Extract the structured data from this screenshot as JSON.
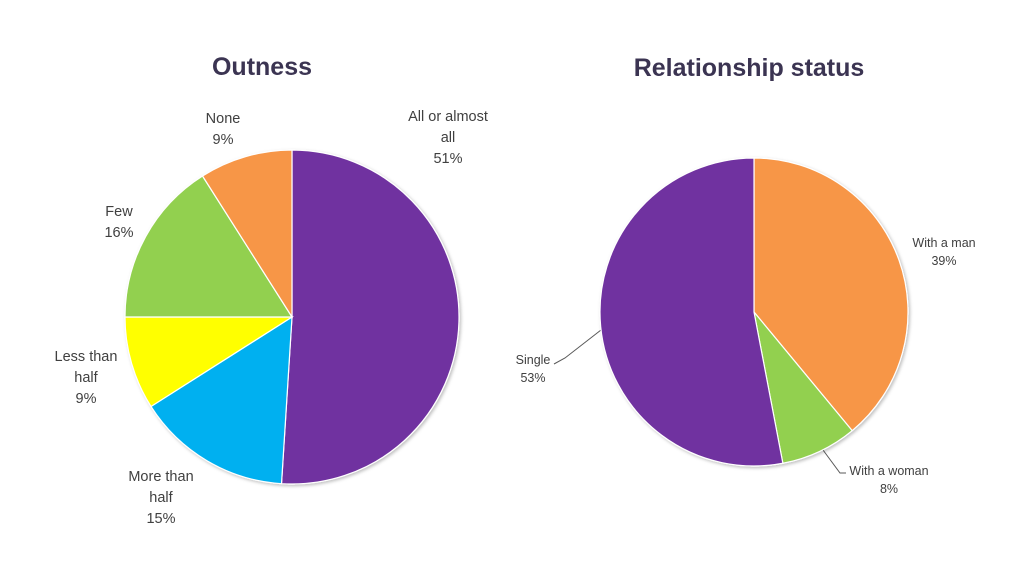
{
  "chart_data": [
    {
      "type": "pie",
      "title": "Outness",
      "start_angle_deg": 0,
      "direction": "clockwise",
      "slices": [
        {
          "label_lines": [
            "All or almost",
            "all"
          ],
          "value_label": "51%",
          "value": 51,
          "color": "#7030a0"
        },
        {
          "label_lines": [
            "More than",
            "half"
          ],
          "value_label": "15%",
          "value": 15,
          "color": "#00b0f0"
        },
        {
          "label_lines": [
            "Less than",
            "half"
          ],
          "value_label": "9%",
          "value": 9,
          "color": "#ffff00"
        },
        {
          "label_lines": [
            "Few"
          ],
          "value_label": "16%",
          "value": 16,
          "color": "#92d050"
        },
        {
          "label_lines": [
            "None"
          ],
          "value_label": "9%",
          "value": 9,
          "color": "#f79646"
        }
      ]
    },
    {
      "type": "pie",
      "title": "Relationship status",
      "start_angle_deg": 0,
      "direction": "clockwise",
      "slices": [
        {
          "label_lines": [
            "With a man"
          ],
          "value_label": "39%",
          "value": 39,
          "color": "#f79646"
        },
        {
          "label_lines": [
            "With a woman"
          ],
          "value_label": "8%",
          "value": 8,
          "color": "#92d050"
        },
        {
          "label_lines": [
            "Single"
          ],
          "value_label": "53%",
          "value": 53,
          "color": "#7030a0"
        }
      ]
    }
  ]
}
